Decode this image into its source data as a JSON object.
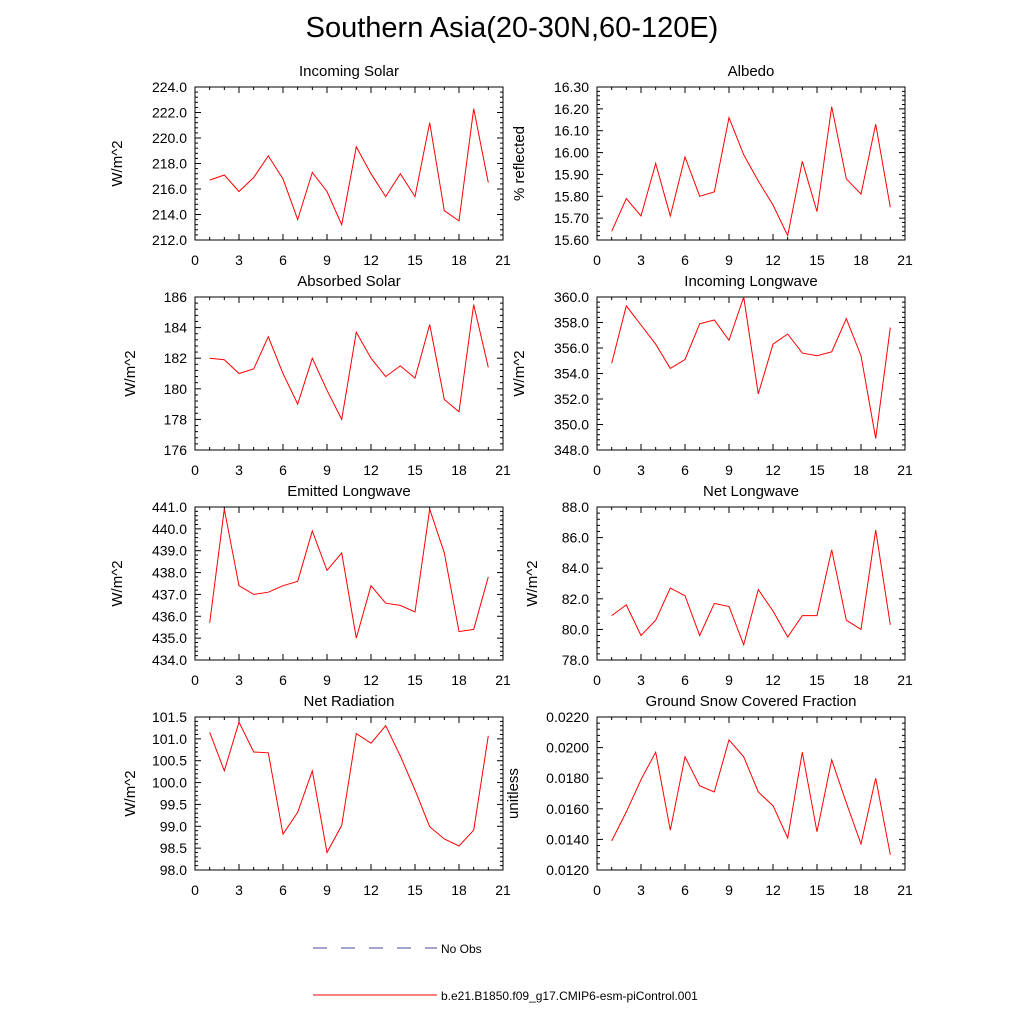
{
  "page": {
    "title": "Southern Asia(20-30N,60-120E)"
  },
  "colors": {
    "series": "#ff0000",
    "obs": "#4a4a9a",
    "axis": "#000000"
  },
  "legend": {
    "entries": [
      {
        "label": "No Obs",
        "style": "dashed",
        "color": "#4a4a9a"
      },
      {
        "label": "b.e21.B1850.f09_g17.CMIP6-esm-piControl.001",
        "style": "solid",
        "color": "#ff0000"
      }
    ]
  },
  "chart_data": [
    {
      "type": "line",
      "title": "Incoming Solar",
      "ylabel": "W/m^2",
      "xlim": [
        0,
        21
      ],
      "ylim": [
        212.0,
        224.0
      ],
      "xticks": [
        0,
        3,
        6,
        9,
        12,
        15,
        18,
        21
      ],
      "yticks": [
        "212.0",
        "214.0",
        "216.0",
        "218.0",
        "220.0",
        "222.0",
        "224.0"
      ],
      "series": [
        {
          "x": [
            1,
            2,
            3,
            4,
            5,
            6,
            7,
            8,
            9,
            10,
            11,
            12,
            13,
            14,
            15,
            16,
            17,
            18,
            19,
            20
          ],
          "y": [
            216.7,
            217.1,
            215.8,
            216.9,
            218.6,
            216.8,
            213.6,
            217.3,
            215.8,
            213.2,
            219.3,
            217.2,
            215.4,
            217.2,
            215.4,
            221.2,
            214.3,
            213.5,
            222.3,
            216.5
          ]
        }
      ]
    },
    {
      "type": "line",
      "title": "Albedo",
      "ylabel": "% reflected",
      "xlim": [
        0,
        21
      ],
      "ylim": [
        15.6,
        16.3
      ],
      "xticks": [
        0,
        3,
        6,
        9,
        12,
        15,
        18,
        21
      ],
      "yticks": [
        "15.60",
        "15.70",
        "15.80",
        "15.90",
        "16.00",
        "16.10",
        "16.20",
        "16.30"
      ],
      "series": [
        {
          "x": [
            1,
            2,
            3,
            4,
            5,
            6,
            7,
            8,
            9,
            10,
            11,
            12,
            13,
            14,
            15,
            16,
            17,
            18,
            19,
            20
          ],
          "y": [
            15.64,
            15.79,
            15.71,
            15.95,
            15.71,
            15.98,
            15.8,
            15.82,
            16.16,
            15.99,
            15.87,
            15.76,
            15.62,
            15.96,
            15.73,
            16.21,
            15.88,
            15.81,
            16.13,
            15.75
          ]
        }
      ]
    },
    {
      "type": "line",
      "title": "Absorbed Solar",
      "ylabel": "W/m^2",
      "xlim": [
        0,
        21
      ],
      "ylim": [
        176,
        186
      ],
      "xticks": [
        0,
        3,
        6,
        9,
        12,
        15,
        18,
        21
      ],
      "yticks": [
        "176",
        "178",
        "180",
        "182",
        "184",
        "186"
      ],
      "series": [
        {
          "x": [
            1,
            2,
            3,
            4,
            5,
            6,
            7,
            8,
            9,
            10,
            11,
            12,
            13,
            14,
            15,
            16,
            17,
            18,
            19,
            20
          ],
          "y": [
            182.0,
            181.9,
            181.0,
            181.3,
            183.4,
            181.0,
            179.0,
            182.0,
            179.9,
            178.0,
            183.7,
            182.0,
            180.8,
            181.5,
            180.7,
            184.2,
            179.3,
            178.5,
            185.5,
            181.4
          ]
        }
      ]
    },
    {
      "type": "line",
      "title": "Incoming Longwave",
      "ylabel": "W/m^2",
      "xlim": [
        0,
        21
      ],
      "ylim": [
        348.0,
        360.0
      ],
      "xticks": [
        0,
        3,
        6,
        9,
        12,
        15,
        18,
        21
      ],
      "yticks": [
        "348.0",
        "350.0",
        "352.0",
        "354.0",
        "356.0",
        "358.0",
        "360.0"
      ],
      "series": [
        {
          "x": [
            1,
            2,
            3,
            4,
            5,
            6,
            7,
            8,
            9,
            10,
            11,
            12,
            13,
            14,
            15,
            16,
            17,
            18,
            19,
            20
          ],
          "y": [
            354.8,
            359.3,
            357.8,
            356.3,
            354.4,
            355.1,
            357.9,
            358.2,
            356.6,
            360.0,
            352.4,
            356.3,
            357.1,
            355.6,
            355.4,
            355.7,
            358.3,
            355.4,
            348.9,
            357.6
          ]
        }
      ]
    },
    {
      "type": "line",
      "title": "Emitted Longwave",
      "ylabel": "W/m^2",
      "xlim": [
        0,
        21
      ],
      "ylim": [
        434.0,
        441.0
      ],
      "xticks": [
        0,
        3,
        6,
        9,
        12,
        15,
        18,
        21
      ],
      "yticks": [
        "434.0",
        "435.0",
        "436.0",
        "437.0",
        "438.0",
        "439.0",
        "440.0",
        "441.0"
      ],
      "series": [
        {
          "x": [
            1,
            2,
            3,
            4,
            5,
            6,
            7,
            8,
            9,
            10,
            11,
            12,
            13,
            14,
            15,
            16,
            17,
            18,
            19,
            20
          ],
          "y": [
            435.7,
            440.9,
            437.4,
            437.0,
            437.1,
            437.4,
            437.6,
            439.9,
            438.1,
            438.9,
            435.0,
            437.4,
            436.6,
            436.5,
            436.2,
            440.9,
            438.9,
            435.3,
            435.4,
            437.8
          ]
        }
      ]
    },
    {
      "type": "line",
      "title": "Net Longwave",
      "ylabel": "W/m^2",
      "xlim": [
        0,
        21
      ],
      "ylim": [
        78.0,
        88.0
      ],
      "xticks": [
        0,
        3,
        6,
        9,
        12,
        15,
        18,
        21
      ],
      "yticks": [
        "78.0",
        "80.0",
        "82.0",
        "84.0",
        "86.0",
        "88.0"
      ],
      "series": [
        {
          "x": [
            1,
            2,
            3,
            4,
            5,
            6,
            7,
            8,
            9,
            10,
            11,
            12,
            13,
            14,
            15,
            16,
            17,
            18,
            19,
            20
          ],
          "y": [
            80.9,
            81.6,
            79.6,
            80.6,
            82.7,
            82.2,
            79.6,
            81.7,
            81.5,
            79.0,
            82.6,
            81.2,
            79.5,
            80.9,
            80.9,
            85.2,
            80.6,
            80.0,
            86.5,
            80.3
          ]
        }
      ]
    },
    {
      "type": "line",
      "title": "Net Radiation",
      "ylabel": "W/m^2",
      "xlim": [
        0,
        21
      ],
      "ylim": [
        98.0,
        101.5
      ],
      "xticks": [
        0,
        3,
        6,
        9,
        12,
        15,
        18,
        21
      ],
      "yticks": [
        "98.0",
        "98.5",
        "99.0",
        "99.5",
        "100.0",
        "100.5",
        "101.0",
        "101.5"
      ],
      "series": [
        {
          "x": [
            1,
            2,
            3,
            4,
            5,
            6,
            7,
            8,
            9,
            10,
            11,
            12,
            13,
            14,
            15,
            16,
            17,
            18,
            19,
            20
          ],
          "y": [
            101.15,
            100.27,
            101.38,
            100.7,
            100.68,
            98.82,
            99.32,
            100.27,
            98.4,
            99.02,
            101.12,
            100.9,
            101.3,
            100.61,
            99.83,
            98.99,
            98.71,
            98.55,
            98.91,
            101.07
          ]
        }
      ]
    },
    {
      "type": "line",
      "title": "Ground Snow Covered Fraction",
      "ylabel": "unitless",
      "xlim": [
        0,
        21
      ],
      "ylim": [
        0.012,
        0.022
      ],
      "xticks": [
        0,
        3,
        6,
        9,
        12,
        15,
        18,
        21
      ],
      "yticks": [
        "0.0120",
        "0.0140",
        "0.0160",
        "0.0180",
        "0.0200",
        "0.0220"
      ],
      "series": [
        {
          "x": [
            1,
            2,
            3,
            4,
            5,
            6,
            7,
            8,
            9,
            10,
            11,
            12,
            13,
            14,
            15,
            16,
            17,
            18,
            19,
            20
          ],
          "y": [
            0.0139,
            0.0158,
            0.0179,
            0.0197,
            0.0146,
            0.0194,
            0.0175,
            0.0171,
            0.0205,
            0.0194,
            0.0171,
            0.0162,
            0.0141,
            0.0197,
            0.0145,
            0.0192,
            0.0164,
            0.0137,
            0.018,
            0.013
          ]
        }
      ]
    }
  ]
}
